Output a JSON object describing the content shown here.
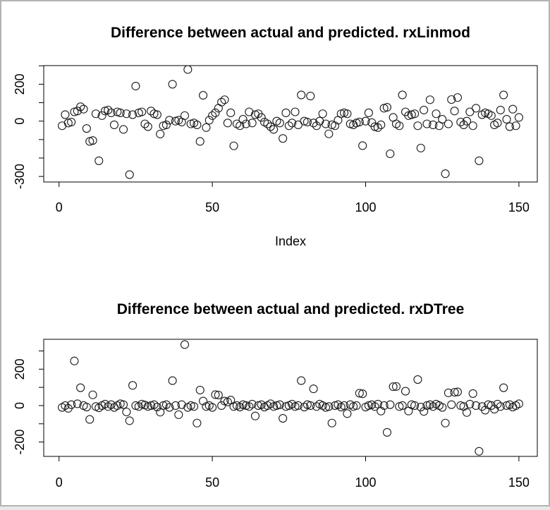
{
  "window": {
    "background": "#ffffff",
    "border_color": "#b3b3b3",
    "foreground": "#000000"
  },
  "chart_data": [
    {
      "type": "scatter",
      "title": "Difference between actual and predicted. rxLinmod",
      "xlabel": "Index",
      "ylabel": "",
      "marker": "open-circle",
      "marker_color": "#000000",
      "grid": false,
      "legend": null,
      "xlim": [
        -5,
        156
      ],
      "ylim": [
        -330,
        301
      ],
      "x_ticks": {
        "values": [
          0,
          50,
          100,
          150
        ],
        "labels": [
          "0",
          "50",
          "100",
          "150"
        ]
      },
      "y_ticks": {
        "values": [
          300,
          200,
          100,
          0,
          -100,
          -200,
          -300
        ],
        "labels": [
          "",
          "200",
          "",
          "0",
          "",
          "",
          "-300"
        ]
      },
      "x_from": 1,
      "y": [
        -25,
        35,
        -10,
        -5,
        50,
        55,
        78,
        65,
        -40,
        -110,
        -105,
        40,
        -215,
        30,
        55,
        60,
        45,
        -20,
        50,
        45,
        -45,
        40,
        -290,
        35,
        190,
        45,
        50,
        -15,
        -30,
        55,
        40,
        35,
        -70,
        -25,
        -20,
        5,
        200,
        0,
        5,
        -5,
        30,
        280,
        -15,
        -10,
        -20,
        -110,
        140,
        -35,
        5,
        30,
        45,
        70,
        103,
        116,
        -10,
        45,
        -134,
        -15,
        -25,
        10,
        -15,
        50,
        -10,
        35,
        40,
        20,
        -5,
        -15,
        -30,
        -45,
        0,
        -10,
        -94,
        45,
        -25,
        -10,
        50,
        -20,
        142,
        0,
        -5,
        136,
        -10,
        -25,
        0,
        40,
        -15,
        -69,
        -20,
        -25,
        5,
        40,
        45,
        40,
        -15,
        -20,
        -10,
        -5,
        -133,
        0,
        45,
        -8,
        -30,
        -35,
        -20,
        70,
        75,
        -177,
        20,
        -15,
        -25,
        142,
        50,
        30,
        35,
        40,
        -25,
        -146,
        60,
        -15,
        116,
        -20,
        40,
        -25,
        10,
        -285,
        -15,
        117,
        55,
        128,
        -5,
        -20,
        0,
        50,
        -25,
        70,
        -215,
        35,
        45,
        40,
        30,
        -20,
        -10,
        60,
        142,
        10,
        -30,
        65,
        -25,
        20
      ]
    },
    {
      "type": "scatter",
      "title": "Difference between actual and predicted. rxDTree",
      "xlabel": "",
      "ylabel": "",
      "marker": "open-circle",
      "marker_color": "#000000",
      "grid": false,
      "legend": null,
      "xlim": [
        -5,
        156
      ],
      "ylim": [
        -279,
        364
      ],
      "x_ticks": {
        "values": [
          0,
          50,
          100,
          150
        ],
        "labels": [
          "0",
          "50",
          "100",
          "150"
        ]
      },
      "y_ticks": {
        "values": [
          300,
          200,
          100,
          0,
          -100,
          -200
        ],
        "labels": [
          "",
          "200",
          "",
          "0",
          "",
          "-200"
        ]
      },
      "x_from": 1,
      "y": [
        -10,
        0,
        -15,
        5,
        245,
        10,
        98,
        0,
        -8,
        -76,
        59,
        -5,
        -12,
        0,
        8,
        -5,
        5,
        -10,
        0,
        10,
        5,
        -35,
        -83,
        111,
        0,
        -5,
        8,
        3,
        -5,
        0,
        5,
        -8,
        -36,
        0,
        5,
        -10,
        137,
        0,
        -50,
        5,
        335,
        -10,
        0,
        -5,
        -96,
        85,
        25,
        -5,
        0,
        -10,
        60,
        58,
        0,
        25,
        20,
        30,
        -5,
        0,
        -8,
        5,
        0,
        -5,
        8,
        -57,
        0,
        5,
        -8,
        0,
        10,
        -5,
        0,
        5,
        -70,
        -5,
        0,
        8,
        -5,
        0,
        137,
        -8,
        5,
        0,
        92,
        -5,
        8,
        0,
        -10,
        -5,
        -96,
        0,
        5,
        -8,
        0,
        -44,
        5,
        -5,
        0,
        68,
        65,
        -8,
        0,
        5,
        -5,
        8,
        -30,
        0,
        -147,
        5,
        104,
        105,
        -5,
        0,
        79,
        -30,
        5,
        0,
        143,
        -8,
        -32,
        0,
        5,
        -5,
        8,
        0,
        -10,
        -96,
        70,
        5,
        73,
        75,
        0,
        -5,
        -38,
        8,
        66,
        0,
        -251,
        -5,
        -25,
        5,
        0,
        -20,
        8,
        -5,
        98,
        0,
        5,
        -8,
        0,
        10
      ]
    }
  ]
}
